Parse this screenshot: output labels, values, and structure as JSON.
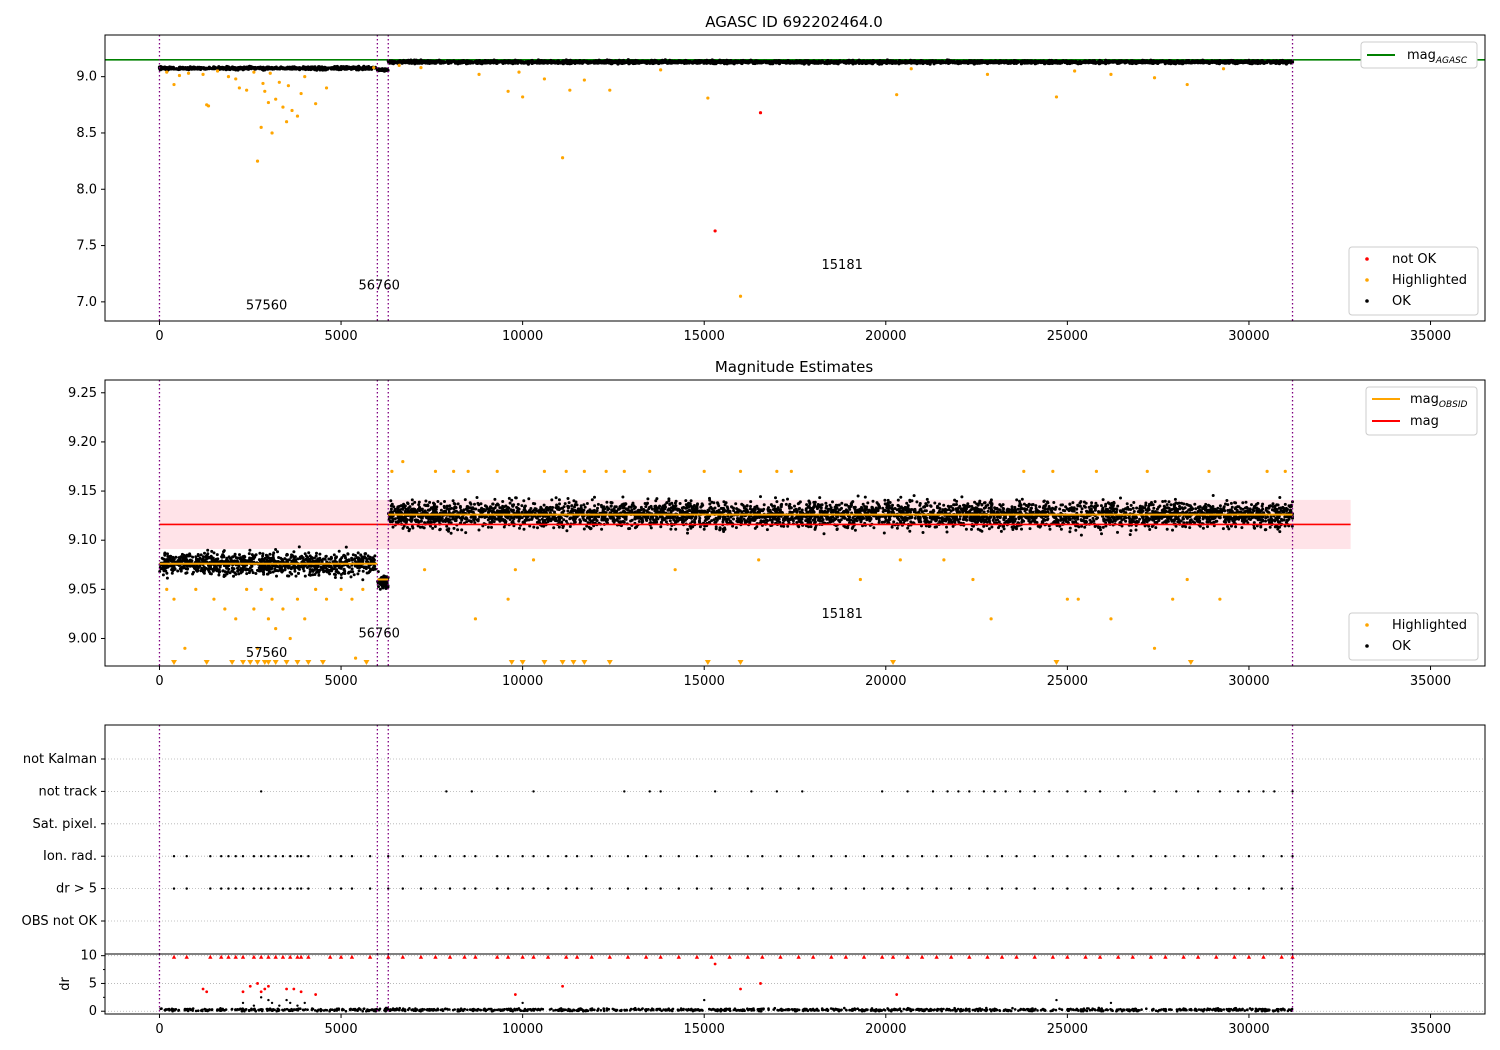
{
  "colors": {
    "ok": "#000000",
    "highlighted": "#ffa500",
    "not_ok": "#ff0000",
    "mag_agasc": "#008000",
    "mag_obsid": "#ffa500",
    "mag": "#ff0000",
    "obs_boundary": "#800080",
    "std_band": "#ffc0cb"
  },
  "chart_data": [
    {
      "type": "scatter",
      "title": "AGASC ID 692202464.0",
      "xlim": [
        -1500,
        36500
      ],
      "ylim": [
        6.83,
        9.37
      ],
      "x_ticks": [
        0,
        5000,
        10000,
        15000,
        20000,
        25000,
        30000,
        35000
      ],
      "y_ticks": [
        7.0,
        7.5,
        8.0,
        8.5,
        9.0
      ],
      "y_tick_labels": [
        "7.0",
        "7.5",
        "8.0",
        "8.5",
        "9.0"
      ],
      "mag_agasc": 9.15,
      "obs_boundaries": [
        0,
        6000,
        6300,
        31200
      ],
      "annotations": [
        {
          "text": "57560",
          "x": 2950,
          "y": 6.93
        },
        {
          "text": "56760",
          "x": 6050,
          "y": 7.11
        },
        {
          "text": "15181",
          "x": 18800,
          "y": 7.29
        }
      ],
      "legend_lines": [
        {
          "label": "mag",
          "sub": "AGASC",
          "color_key": "mag_agasc"
        }
      ],
      "legend_points": [
        {
          "label": "not OK",
          "color_key": "not_ok"
        },
        {
          "label": "Highlighted",
          "color_key": "highlighted"
        },
        {
          "label": "OK",
          "color_key": "ok"
        }
      ],
      "ok_segments": [
        {
          "x0": 0,
          "x1": 5950,
          "center": 9.075,
          "spread": 0.012
        },
        {
          "x0": 6000,
          "x1": 6300,
          "center": 9.06,
          "spread": 0.01
        },
        {
          "x0": 6300,
          "x1": 31200,
          "center": 9.13,
          "spread": 0.013
        }
      ],
      "highlighted_points": [
        [
          200,
          9.04
        ],
        [
          400,
          8.93
        ],
        [
          550,
          9.01
        ],
        [
          800,
          9.03
        ],
        [
          1200,
          9.02
        ],
        [
          1300,
          8.75
        ],
        [
          1350,
          8.74
        ],
        [
          1600,
          9.05
        ],
        [
          1900,
          9.0
        ],
        [
          2100,
          8.98
        ],
        [
          2200,
          8.9
        ],
        [
          2400,
          8.88
        ],
        [
          2600,
          9.04
        ],
        [
          2700,
          8.25
        ],
        [
          2800,
          8.55
        ],
        [
          2850,
          8.94
        ],
        [
          2900,
          8.87
        ],
        [
          3000,
          8.77
        ],
        [
          3050,
          9.03
        ],
        [
          3100,
          8.5
        ],
        [
          3200,
          8.8
        ],
        [
          3300,
          8.95
        ],
        [
          3400,
          8.73
        ],
        [
          3500,
          8.6
        ],
        [
          3550,
          8.92
        ],
        [
          3650,
          8.7
        ],
        [
          3800,
          8.65
        ],
        [
          3900,
          8.85
        ],
        [
          4000,
          9.0
        ],
        [
          4300,
          8.76
        ],
        [
          4600,
          8.9
        ],
        [
          5900,
          9.08
        ],
        [
          6600,
          9.1
        ],
        [
          7200,
          9.08
        ],
        [
          8800,
          9.02
        ],
        [
          9600,
          8.87
        ],
        [
          9900,
          9.04
        ],
        [
          10000,
          8.82
        ],
        [
          10600,
          8.98
        ],
        [
          11100,
          8.28
        ],
        [
          11300,
          8.88
        ],
        [
          11700,
          8.97
        ],
        [
          12400,
          8.88
        ],
        [
          13800,
          9.06
        ],
        [
          15100,
          8.81
        ],
        [
          16000,
          7.05
        ],
        [
          20300,
          8.84
        ],
        [
          20700,
          9.07
        ],
        [
          22800,
          9.02
        ],
        [
          24700,
          8.82
        ],
        [
          25200,
          9.05
        ],
        [
          26200,
          9.02
        ],
        [
          27400,
          8.99
        ],
        [
          28300,
          8.93
        ],
        [
          29300,
          9.07
        ]
      ],
      "not_ok_points": [
        [
          15300,
          7.63
        ],
        [
          16550,
          8.68
        ]
      ]
    },
    {
      "type": "scatter",
      "title": "Magnitude Estimates",
      "xlim": [
        -1500,
        36500
      ],
      "ylim": [
        8.972,
        9.263
      ],
      "x_ticks": [
        0,
        5000,
        10000,
        15000,
        20000,
        25000,
        30000,
        35000
      ],
      "y_ticks": [
        9.0,
        9.05,
        9.1,
        9.15,
        9.2,
        9.25
      ],
      "y_tick_labels": [
        "9.00",
        "9.05",
        "9.10",
        "9.15",
        "9.20",
        "9.25"
      ],
      "mag": 9.116,
      "band": [
        9.091,
        9.141
      ],
      "band_x": [
        0,
        32800
      ],
      "obsid_mags": [
        {
          "x0": 0,
          "x1": 6000,
          "mag": 9.076
        },
        {
          "x0": 6000,
          "x1": 6300,
          "mag": 9.06
        },
        {
          "x0": 6300,
          "x1": 31200,
          "mag": 9.126
        }
      ],
      "obs_boundaries": [
        0,
        6000,
        6300,
        31200
      ],
      "annotations": [
        {
          "text": "57560",
          "x": 2950,
          "y": 8.981
        },
        {
          "text": "56760",
          "x": 6050,
          "y": 9.001
        },
        {
          "text": "15181",
          "x": 18800,
          "y": 9.021
        }
      ],
      "legend_lines": [
        {
          "label": "mag",
          "sub": "OBSID",
          "color_key": "mag_obsid"
        },
        {
          "label": "mag",
          "sub": "",
          "color_key": "mag"
        }
      ],
      "legend_points": [
        {
          "label": "Highlighted",
          "color_key": "highlighted"
        },
        {
          "label": "OK",
          "color_key": "ok"
        }
      ],
      "ok_segments": [
        {
          "x0": 0,
          "x1": 5950,
          "center": 9.076,
          "spread": 0.011
        },
        {
          "x0": 6000,
          "x1": 6300,
          "center": 9.058,
          "spread": 0.008
        },
        {
          "x0": 6300,
          "x1": 31200,
          "center": 9.126,
          "spread": 0.013
        }
      ],
      "highlighted_points": [
        [
          200,
          9.05
        ],
        [
          400,
          9.04
        ],
        [
          700,
          8.99
        ],
        [
          1000,
          9.05
        ],
        [
          1500,
          9.04
        ],
        [
          1800,
          9.03
        ],
        [
          2100,
          9.02
        ],
        [
          2400,
          9.05
        ],
        [
          2600,
          9.03
        ],
        [
          2700,
          8.99
        ],
        [
          2800,
          9.05
        ],
        [
          3000,
          9.02
        ],
        [
          3100,
          9.04
        ],
        [
          3200,
          9.01
        ],
        [
          3400,
          9.03
        ],
        [
          3600,
          9.0
        ],
        [
          3800,
          9.04
        ],
        [
          4000,
          9.02
        ],
        [
          4300,
          9.05
        ],
        [
          4600,
          9.04
        ],
        [
          5000,
          9.05
        ],
        [
          5300,
          9.04
        ],
        [
          5400,
          8.98
        ],
        [
          5600,
          9.05
        ],
        [
          6400,
          9.17
        ],
        [
          6700,
          9.18
        ],
        [
          7300,
          9.07
        ],
        [
          7600,
          9.17
        ],
        [
          8100,
          9.17
        ],
        [
          8500,
          9.17
        ],
        [
          8700,
          9.02
        ],
        [
          9300,
          9.17
        ],
        [
          9600,
          9.04
        ],
        [
          9800,
          9.07
        ],
        [
          10300,
          9.08
        ],
        [
          10600,
          9.17
        ],
        [
          11200,
          9.17
        ],
        [
          11700,
          9.17
        ],
        [
          12300,
          9.17
        ],
        [
          12800,
          9.17
        ],
        [
          13500,
          9.17
        ],
        [
          14200,
          9.07
        ],
        [
          15000,
          9.17
        ],
        [
          16000,
          9.17
        ],
        [
          16500,
          9.08
        ],
        [
          17000,
          9.17
        ],
        [
          17400,
          9.17
        ],
        [
          19300,
          9.06
        ],
        [
          20400,
          9.08
        ],
        [
          21600,
          9.08
        ],
        [
          22400,
          9.06
        ],
        [
          22900,
          9.02
        ],
        [
          23800,
          9.17
        ],
        [
          24600,
          9.17
        ],
        [
          25000,
          9.04
        ],
        [
          25300,
          9.04
        ],
        [
          25800,
          9.17
        ],
        [
          26200,
          9.02
        ],
        [
          27200,
          9.17
        ],
        [
          27400,
          8.99
        ],
        [
          27900,
          9.04
        ],
        [
          28300,
          9.06
        ],
        [
          28900,
          9.17
        ],
        [
          29200,
          9.04
        ],
        [
          30500,
          9.17
        ],
        [
          31000,
          9.17
        ]
      ],
      "offscale_x": [
        400,
        1300,
        2000,
        2300,
        2500,
        2700,
        2900,
        3000,
        3200,
        3500,
        3800,
        4100,
        4500,
        5700,
        9700,
        10000,
        10600,
        11100,
        11400,
        11700,
        12400,
        15100,
        16000,
        20200,
        24700,
        28400
      ]
    },
    {
      "type": "scatter",
      "title": "",
      "xlim": [
        -1500,
        36500
      ],
      "categories": [
        "not Kalman",
        "not track",
        "Sat. pixel.",
        "Ion. rad.",
        "dr > 5",
        "OBS not OK"
      ],
      "obs_boundaries": [
        0,
        6000,
        6300,
        31200
      ],
      "flags": {
        "not track": [
          2800,
          7900,
          8600,
          10300,
          12800,
          13500,
          13800,
          15300,
          16300,
          17000,
          17700,
          19900,
          20600,
          21300,
          21700,
          22000,
          22300,
          22700,
          23000,
          23300,
          23700,
          24100,
          24500,
          25000,
          25500,
          25900,
          26600,
          27400,
          28000,
          28600,
          29200,
          29700,
          30000,
          30400,
          30700,
          31200
        ],
        "Ion. rad.": [
          400,
          750,
          1400,
          1700,
          1900,
          2100,
          2300,
          2600,
          2800,
          3000,
          3200,
          3400,
          3600,
          3800,
          3900,
          4100,
          4700,
          5000,
          5300,
          5800,
          6300,
          6700,
          7200,
          7600,
          8000,
          8400,
          8700,
          9300,
          9600,
          10000,
          10300,
          10700,
          11200,
          11500,
          11900,
          12400,
          12900,
          13400,
          13800,
          14300,
          14800,
          15200,
          15700,
          16200,
          16600,
          17100,
          17600,
          18000,
          18500,
          18900,
          19400,
          19900,
          20200,
          20600,
          21000,
          21400,
          21800,
          22300,
          22800,
          23200,
          23600,
          24100,
          24600,
          25000,
          25500,
          25900,
          26400,
          26800,
          27300,
          27700,
          28200,
          28600,
          29100,
          29600,
          30000,
          30400,
          30900,
          31200
        ],
        "dr > 5": [
          400,
          750,
          1400,
          1700,
          1900,
          2100,
          2300,
          2600,
          2800,
          3000,
          3200,
          3400,
          3600,
          3800,
          3900,
          4100,
          4700,
          5000,
          5300,
          5800,
          6300,
          6700,
          7200,
          7600,
          8000,
          8400,
          8700,
          9300,
          9600,
          10000,
          10300,
          10700,
          11200,
          11500,
          11900,
          12400,
          12900,
          13400,
          13800,
          14300,
          14800,
          15200,
          15700,
          16200,
          16600,
          17100,
          17600,
          18000,
          18500,
          18900,
          19400,
          19900,
          20200,
          20600,
          21000,
          21400,
          21800,
          22300,
          22800,
          23200,
          23600,
          24100,
          24600,
          25000,
          25500,
          25900,
          26400,
          26800,
          27300,
          27700,
          28200,
          28600,
          29100,
          29600,
          30000,
          30400,
          30900,
          31200
        ]
      }
    },
    {
      "type": "scatter",
      "ylabel": "dr",
      "xlim": [
        -1500,
        36500
      ],
      "ylim": [
        -0.5,
        10.3
      ],
      "x_ticks": [
        0,
        5000,
        10000,
        15000,
        20000,
        25000,
        30000,
        35000
      ],
      "y_ticks": [
        0,
        5,
        10
      ],
      "obs_boundaries": [
        0,
        6000,
        6300,
        31200
      ],
      "clip_value": 9.8,
      "ok_band": {
        "x0": 0,
        "x1": 31200,
        "center": 0.25,
        "spread": 0.25
      },
      "not_ok_points": [
        [
          1200,
          4.0
        ],
        [
          1300,
          3.5
        ],
        [
          2300,
          3.5
        ],
        [
          2500,
          4.5
        ],
        [
          2700,
          5.0
        ],
        [
          2800,
          3.5
        ],
        [
          2900,
          4.0
        ],
        [
          3000,
          4.5
        ],
        [
          3500,
          4.0
        ],
        [
          3700,
          4.0
        ],
        [
          3900,
          3.5
        ],
        [
          4300,
          3.0
        ],
        [
          9800,
          3.0
        ],
        [
          11100,
          4.5
        ],
        [
          15300,
          8.5
        ],
        [
          16000,
          4.0
        ],
        [
          16550,
          5.0
        ],
        [
          20300,
          3.0
        ]
      ],
      "low_points": [
        [
          2300,
          1.5
        ],
        [
          2600,
          1.0
        ],
        [
          2800,
          2.5
        ],
        [
          3000,
          2.0
        ],
        [
          3100,
          1.5
        ],
        [
          3300,
          1.0
        ],
        [
          3500,
          2.0
        ],
        [
          3600,
          1.5
        ],
        [
          3800,
          1.0
        ],
        [
          4000,
          1.5
        ],
        [
          10000,
          1.5
        ],
        [
          15000,
          2.0
        ],
        [
          24700,
          2.0
        ],
        [
          26200,
          1.5
        ]
      ]
    }
  ]
}
